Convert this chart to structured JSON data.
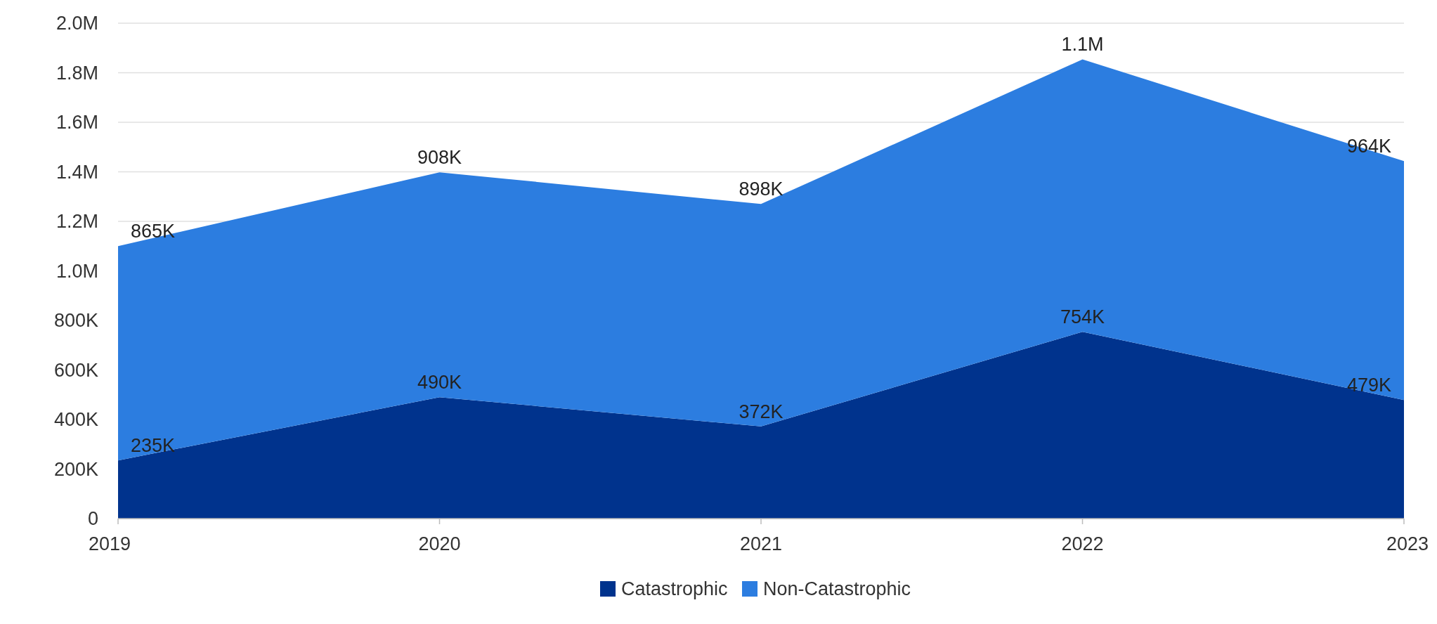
{
  "chart_data": {
    "type": "area",
    "stacked": true,
    "categories": [
      "2019",
      "2020",
      "2021",
      "2022",
      "2023"
    ],
    "series": [
      {
        "name": "Catastrophic",
        "color": "#00338d",
        "values": [
          235000,
          490000,
          372000,
          754000,
          479000
        ],
        "value_labels": [
          "235K",
          "490K",
          "372K",
          "754K",
          "479K"
        ]
      },
      {
        "name": "Non-Catastrophic",
        "color": "#2c7de0",
        "values": [
          865000,
          908000,
          898000,
          1100000,
          964000
        ],
        "value_labels": [
          "865K",
          "908K",
          "898K",
          "1.1M",
          "964K"
        ]
      }
    ],
    "ylim": [
      0,
      2000000
    ],
    "yticks": [
      0,
      {
        "value": 200000,
        "label": "200K"
      },
      {
        "value": 400000,
        "label": "400K"
      },
      {
        "value": 600000,
        "label": "600K"
      },
      {
        "value": 800000,
        "label": "800K"
      },
      {
        "value": 1000000,
        "label": "1.0M"
      },
      {
        "value": 1200000,
        "label": "1.2M"
      },
      {
        "value": 1400000,
        "label": "1.4M"
      },
      {
        "value": 1600000,
        "label": "1.6M"
      },
      {
        "value": 1800000,
        "label": "1.8M"
      },
      {
        "value": 2000000,
        "label": "2.0M"
      }
    ],
    "grid": "y",
    "legend": "bottom"
  }
}
